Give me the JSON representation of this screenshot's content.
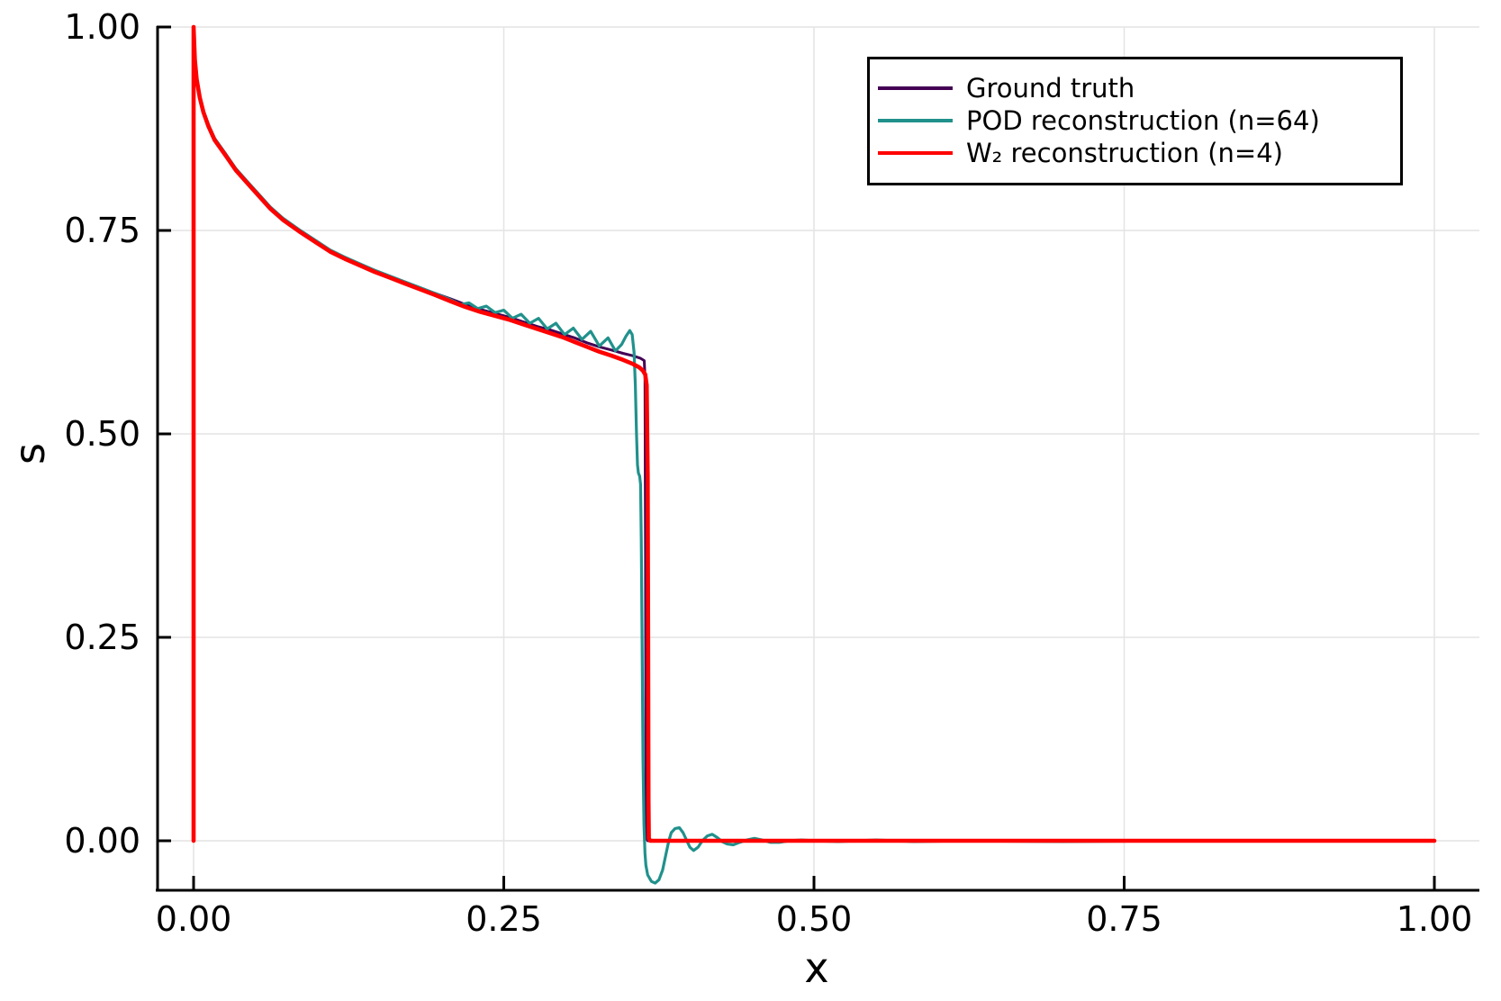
{
  "figure": {
    "xlabel": "x",
    "ylabel": "s",
    "background": "#ffffff",
    "grid_color": "#e4e4e4",
    "axis_color": "#000000"
  },
  "legend": {
    "position": "top-right",
    "entries": [
      {
        "label": "Ground truth",
        "color": "#440154"
      },
      {
        "label": "POD reconstruction (n=64)",
        "color": "#21918c"
      },
      {
        "label": "W₂ reconstruction (n=4)",
        "color": "#ff0000"
      }
    ]
  },
  "chart_data": {
    "type": "line",
    "title": "",
    "xlabel": "x",
    "ylabel": "s",
    "xlim": [
      0.0,
      1.0
    ],
    "ylim": [
      -0.06,
      1.0
    ],
    "grid": true,
    "legend_position": "top-right",
    "x_ticks": [
      0.0,
      0.25,
      0.5,
      0.75,
      1.0
    ],
    "x_tick_labels": [
      "0.00",
      "0.25",
      "0.50",
      "0.75",
      "1.00"
    ],
    "y_ticks": [
      0.0,
      0.25,
      0.5,
      0.75,
      1.0
    ],
    "y_tick_labels": [
      "0.00",
      "0.25",
      "0.50",
      "0.75",
      "1.00"
    ],
    "series": [
      {
        "name": "Ground truth",
        "color": "#440154",
        "width": 3,
        "points": [
          [
            0.0,
            1.0
          ],
          [
            0.001,
            0.962
          ],
          [
            0.0025,
            0.938
          ],
          [
            0.005,
            0.915
          ],
          [
            0.008,
            0.897
          ],
          [
            0.012,
            0.88
          ],
          [
            0.017,
            0.863
          ],
          [
            0.0254,
            0.845
          ],
          [
            0.034,
            0.826
          ],
          [
            0.044,
            0.809
          ],
          [
            0.054,
            0.792
          ],
          [
            0.0617,
            0.779
          ],
          [
            0.072,
            0.765
          ],
          [
            0.085,
            0.751
          ],
          [
            0.098,
            0.738
          ],
          [
            0.11,
            0.726
          ],
          [
            0.122,
            0.717
          ],
          [
            0.134,
            0.709
          ],
          [
            0.146,
            0.701
          ],
          [
            0.158,
            0.694
          ],
          [
            0.17,
            0.687
          ],
          [
            0.182,
            0.68
          ],
          [
            0.194,
            0.673
          ],
          [
            0.207,
            0.666
          ],
          [
            0.219,
            0.659
          ],
          [
            0.231,
            0.653
          ],
          [
            0.243,
            0.648
          ],
          [
            0.255,
            0.643
          ],
          [
            0.267,
            0.637
          ],
          [
            0.277,
            0.632
          ],
          [
            0.287,
            0.628
          ],
          [
            0.297,
            0.623
          ],
          [
            0.307,
            0.618
          ],
          [
            0.317,
            0.612
          ],
          [
            0.327,
            0.607
          ],
          [
            0.337,
            0.603
          ],
          [
            0.346,
            0.599
          ],
          [
            0.354,
            0.596
          ],
          [
            0.36,
            0.593
          ],
          [
            0.3632,
            0.59
          ],
          [
            0.3638,
            0.57
          ],
          [
            0.3642,
            0.35
          ],
          [
            0.3645,
            0.08
          ],
          [
            0.3648,
            0.005
          ],
          [
            0.366,
            0.0
          ],
          [
            0.4,
            0.0
          ],
          [
            0.5,
            0.0
          ],
          [
            0.7,
            0.0
          ],
          [
            1.0,
            0.0
          ]
        ]
      },
      {
        "name": "POD reconstruction (n=64)",
        "color": "#21918c",
        "width": 3.2,
        "points": [
          [
            0.0,
            1.0
          ],
          [
            0.001,
            0.962
          ],
          [
            0.0025,
            0.938
          ],
          [
            0.005,
            0.915
          ],
          [
            0.008,
            0.897
          ],
          [
            0.012,
            0.88
          ],
          [
            0.017,
            0.863
          ],
          [
            0.0254,
            0.845
          ],
          [
            0.034,
            0.826
          ],
          [
            0.044,
            0.809
          ],
          [
            0.054,
            0.792
          ],
          [
            0.0617,
            0.779
          ],
          [
            0.072,
            0.765
          ],
          [
            0.085,
            0.751
          ],
          [
            0.098,
            0.738
          ],
          [
            0.11,
            0.726
          ],
          [
            0.122,
            0.717
          ],
          [
            0.134,
            0.709
          ],
          [
            0.146,
            0.701
          ],
          [
            0.158,
            0.694
          ],
          [
            0.17,
            0.687
          ],
          [
            0.182,
            0.68
          ],
          [
            0.194,
            0.673
          ],
          [
            0.207,
            0.665
          ],
          [
            0.215,
            0.659
          ],
          [
            0.222,
            0.661
          ],
          [
            0.229,
            0.654
          ],
          [
            0.236,
            0.657
          ],
          [
            0.243,
            0.649
          ],
          [
            0.25,
            0.652
          ],
          [
            0.257,
            0.642
          ],
          [
            0.264,
            0.647
          ],
          [
            0.271,
            0.636
          ],
          [
            0.278,
            0.642
          ],
          [
            0.285,
            0.629
          ],
          [
            0.292,
            0.636
          ],
          [
            0.299,
            0.622
          ],
          [
            0.306,
            0.63
          ],
          [
            0.313,
            0.616
          ],
          [
            0.32,
            0.626
          ],
          [
            0.327,
            0.608
          ],
          [
            0.334,
            0.618
          ],
          [
            0.34,
            0.602
          ],
          [
            0.345,
            0.61
          ],
          [
            0.3485,
            0.62
          ],
          [
            0.3515,
            0.627
          ],
          [
            0.3535,
            0.622
          ],
          [
            0.355,
            0.6
          ],
          [
            0.356,
            0.56
          ],
          [
            0.357,
            0.5
          ],
          [
            0.3578,
            0.462
          ],
          [
            0.3585,
            0.452
          ],
          [
            0.3595,
            0.448
          ],
          [
            0.3602,
            0.438
          ],
          [
            0.3608,
            0.37
          ],
          [
            0.3615,
            0.25
          ],
          [
            0.3622,
            0.1
          ],
          [
            0.363,
            0.02
          ],
          [
            0.3638,
            -0.015
          ],
          [
            0.3645,
            -0.03
          ],
          [
            0.366,
            -0.042
          ],
          [
            0.369,
            -0.05
          ],
          [
            0.372,
            -0.052
          ],
          [
            0.375,
            -0.048
          ],
          [
            0.378,
            -0.036
          ],
          [
            0.3805,
            -0.018
          ],
          [
            0.383,
            0.0
          ],
          [
            0.385,
            0.01
          ],
          [
            0.388,
            0.015
          ],
          [
            0.3915,
            0.016
          ],
          [
            0.3945,
            0.01
          ],
          [
            0.3975,
            0.0
          ],
          [
            0.4,
            -0.008
          ],
          [
            0.403,
            -0.012
          ],
          [
            0.4065,
            -0.008
          ],
          [
            0.41,
            0.0
          ],
          [
            0.414,
            0.006
          ],
          [
            0.418,
            0.008
          ],
          [
            0.422,
            0.004
          ],
          [
            0.426,
            -0.001
          ],
          [
            0.43,
            -0.004
          ],
          [
            0.435,
            -0.005
          ],
          [
            0.44,
            -0.002
          ],
          [
            0.446,
            0.001
          ],
          [
            0.452,
            0.003
          ],
          [
            0.458,
            0.001
          ],
          [
            0.465,
            -0.002
          ],
          [
            0.472,
            -0.002
          ],
          [
            0.48,
            0.0
          ],
          [
            0.49,
            0.001
          ],
          [
            0.5,
            0.0
          ],
          [
            0.52,
            -0.001
          ],
          [
            0.55,
            0.001
          ],
          [
            0.58,
            -0.001
          ],
          [
            0.62,
            0.0
          ],
          [
            0.7,
            -0.001
          ],
          [
            0.8,
            0.0
          ],
          [
            0.9,
            0.0
          ],
          [
            1.0,
            0.0
          ]
        ]
      },
      {
        "name": "W₂ reconstruction (n=4)",
        "color": "#ff0000",
        "width": 4.6,
        "points": [
          [
            0.0,
            0.0
          ],
          [
            0.0,
            1.0
          ],
          [
            0.001,
            0.96
          ],
          [
            0.0025,
            0.936
          ],
          [
            0.005,
            0.913
          ],
          [
            0.008,
            0.895
          ],
          [
            0.012,
            0.878
          ],
          [
            0.017,
            0.861
          ],
          [
            0.0254,
            0.843
          ],
          [
            0.034,
            0.824
          ],
          [
            0.044,
            0.807
          ],
          [
            0.054,
            0.79
          ],
          [
            0.0617,
            0.777
          ],
          [
            0.072,
            0.763
          ],
          [
            0.085,
            0.749
          ],
          [
            0.098,
            0.736
          ],
          [
            0.11,
            0.724
          ],
          [
            0.122,
            0.715
          ],
          [
            0.134,
            0.707
          ],
          [
            0.146,
            0.699
          ],
          [
            0.158,
            0.692
          ],
          [
            0.17,
            0.685
          ],
          [
            0.182,
            0.678
          ],
          [
            0.194,
            0.671
          ],
          [
            0.207,
            0.663
          ],
          [
            0.219,
            0.656
          ],
          [
            0.231,
            0.65
          ],
          [
            0.243,
            0.645
          ],
          [
            0.255,
            0.64
          ],
          [
            0.267,
            0.634
          ],
          [
            0.277,
            0.629
          ],
          [
            0.287,
            0.624
          ],
          [
            0.297,
            0.619
          ],
          [
            0.307,
            0.613
          ],
          [
            0.317,
            0.607
          ],
          [
            0.327,
            0.601
          ],
          [
            0.337,
            0.596
          ],
          [
            0.346,
            0.591
          ],
          [
            0.354,
            0.586
          ],
          [
            0.359,
            0.582
          ],
          [
            0.362,
            0.578
          ],
          [
            0.364,
            0.573
          ],
          [
            0.3652,
            0.56
          ],
          [
            0.366,
            0.45
          ],
          [
            0.3663,
            0.25
          ],
          [
            0.3666,
            0.05
          ],
          [
            0.3669,
            0.003
          ],
          [
            0.368,
            0.0
          ],
          [
            0.4,
            0.0
          ],
          [
            0.6,
            0.0
          ],
          [
            0.8,
            0.0
          ],
          [
            1.0,
            0.0
          ]
        ]
      }
    ]
  }
}
